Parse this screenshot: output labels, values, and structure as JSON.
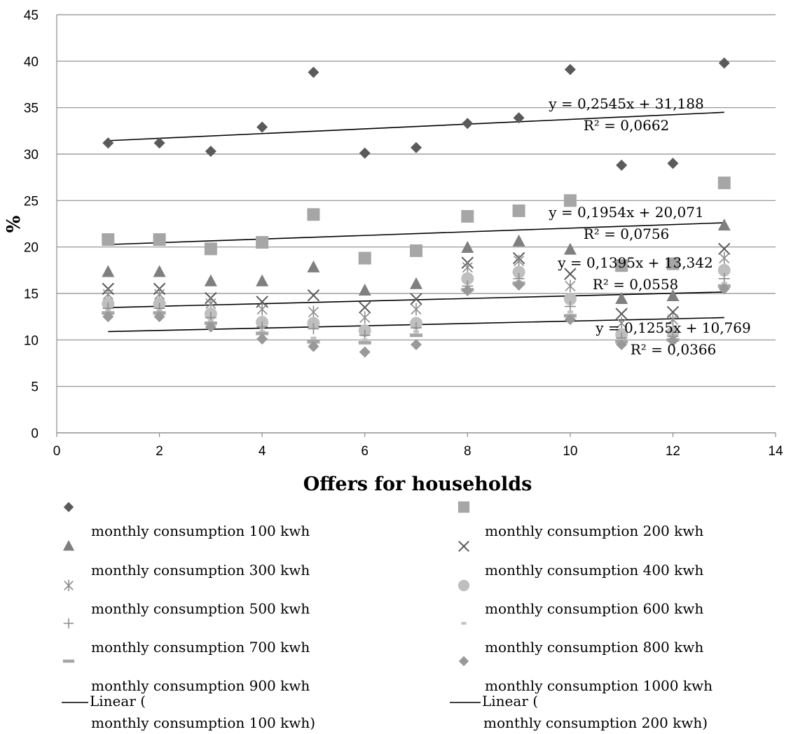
{
  "chart_data": {
    "type": "scatter",
    "title": "",
    "xlabel": "Offers for households",
    "ylabel": "%",
    "xlim": [
      0,
      14
    ],
    "ylim": [
      0,
      45
    ],
    "x_ticks": [
      "0",
      "2",
      "4",
      "6",
      "8",
      "10",
      "12",
      "14"
    ],
    "y_ticks": [
      "0",
      "5",
      "10",
      "15",
      "20",
      "25",
      "30",
      "35",
      "40",
      "45"
    ],
    "grid": "horizontal",
    "legend_position": "bottom",
    "x": [
      1,
      2,
      3,
      4,
      5,
      6,
      7,
      8,
      9,
      10,
      11,
      12,
      13
    ],
    "series": [
      {
        "name": "monthly consumption 100 kwh",
        "marker": "diamond",
        "color": "#5a5a5a",
        "values": [
          31.2,
          31.2,
          30.3,
          32.9,
          38.8,
          30.1,
          30.7,
          33.3,
          33.9,
          39.1,
          28.8,
          29.0,
          39.8
        ]
      },
      {
        "name": "monthly consumption 200 kwh",
        "marker": "square",
        "color": "#a6a6a6",
        "values": [
          20.8,
          20.8,
          19.8,
          20.5,
          23.5,
          18.8,
          19.6,
          23.3,
          23.9,
          25.0,
          18.0,
          18.2,
          26.9
        ]
      },
      {
        "name": "monthly consumption 300 kwh",
        "marker": "triangle",
        "color": "#7f7f7f",
        "values": [
          17.3,
          17.3,
          16.3,
          16.3,
          17.8,
          15.3,
          16.0,
          19.9,
          20.6,
          19.7,
          14.4,
          14.7,
          22.3
        ]
      },
      {
        "name": "monthly consumption 400 kwh",
        "marker": "x",
        "color": "#595959",
        "values": [
          15.5,
          15.5,
          14.5,
          14.1,
          14.8,
          13.5,
          14.4,
          18.3,
          18.8,
          17.1,
          12.8,
          13.0,
          19.8
        ]
      },
      {
        "name": "monthly consumption 500 kwh",
        "marker": "star",
        "color": "#8c8c8c",
        "values": [
          14.9,
          14.9,
          13.9,
          13.3,
          13.0,
          12.4,
          13.3,
          17.8,
          18.5,
          15.8,
          11.8,
          12.2,
          18.8
        ]
      },
      {
        "name": "monthly consumption 600 kwh",
        "marker": "circle",
        "color": "#bfbfbf",
        "values": [
          13.9,
          13.9,
          12.8,
          11.9,
          11.8,
          11.0,
          11.8,
          16.6,
          17.3,
          14.4,
          10.6,
          10.8,
          17.5
        ]
      },
      {
        "name": "monthly consumption 700 kwh",
        "marker": "plus",
        "color": "#8c8c8c",
        "values": [
          13.4,
          13.4,
          12.4,
          11.4,
          11.2,
          10.5,
          11.3,
          15.8,
          16.6,
          13.6,
          10.2,
          10.4,
          16.6
        ]
      },
      {
        "name": "monthly consumption 800 kwh",
        "marker": "dash",
        "color": "#c0c0c0",
        "values": [
          13.1,
          13.1,
          12.0,
          10.9,
          10.2,
          10.0,
          10.9,
          15.6,
          16.3,
          13.0,
          10.0,
          10.2,
          16.1
        ]
      },
      {
        "name": "monthly consumption 900 kwh",
        "marker": "bar",
        "color": "#a6a6a6",
        "values": [
          12.9,
          12.9,
          11.8,
          10.7,
          9.8,
          9.7,
          10.5,
          15.4,
          16.1,
          12.6,
          9.8,
          10.0,
          15.8
        ]
      },
      {
        "name": "monthly consumption 1000 kwh",
        "marker": "diamond",
        "color": "#999999",
        "values": [
          12.5,
          12.5,
          11.4,
          10.1,
          9.3,
          8.7,
          9.5,
          15.3,
          15.9,
          12.2,
          9.5,
          9.9,
          15.5
        ]
      }
    ],
    "trendlines": [
      {
        "name": "Linear (\nmonthly consumption 100 kwh)",
        "slope": 0.2545,
        "intercept": 31.188,
        "x_range": [
          1,
          13
        ],
        "equation": "y = 0,2545x + 31,188",
        "r2": "R² = 0,0662"
      },
      {
        "name": "Linear (\nmonthly consumption 200 kwh)",
        "slope": 0.1954,
        "intercept": 20.071,
        "x_range": [
          1,
          13
        ],
        "equation": "y = 0,1954x + 20,071",
        "r2": "R² = 0,0756"
      },
      {
        "name": "",
        "slope": 0.1395,
        "intercept": 13.342,
        "x_range": [
          1,
          13
        ],
        "equation": "y = 0,1395x + 13,342",
        "r2": "R² = 0,0558"
      },
      {
        "name": "",
        "slope": 0.1255,
        "intercept": 10.769,
        "x_range": [
          1,
          13
        ],
        "equation": "y = 0,1255x + 10,769",
        "r2": "R² = 0,0366"
      }
    ]
  }
}
